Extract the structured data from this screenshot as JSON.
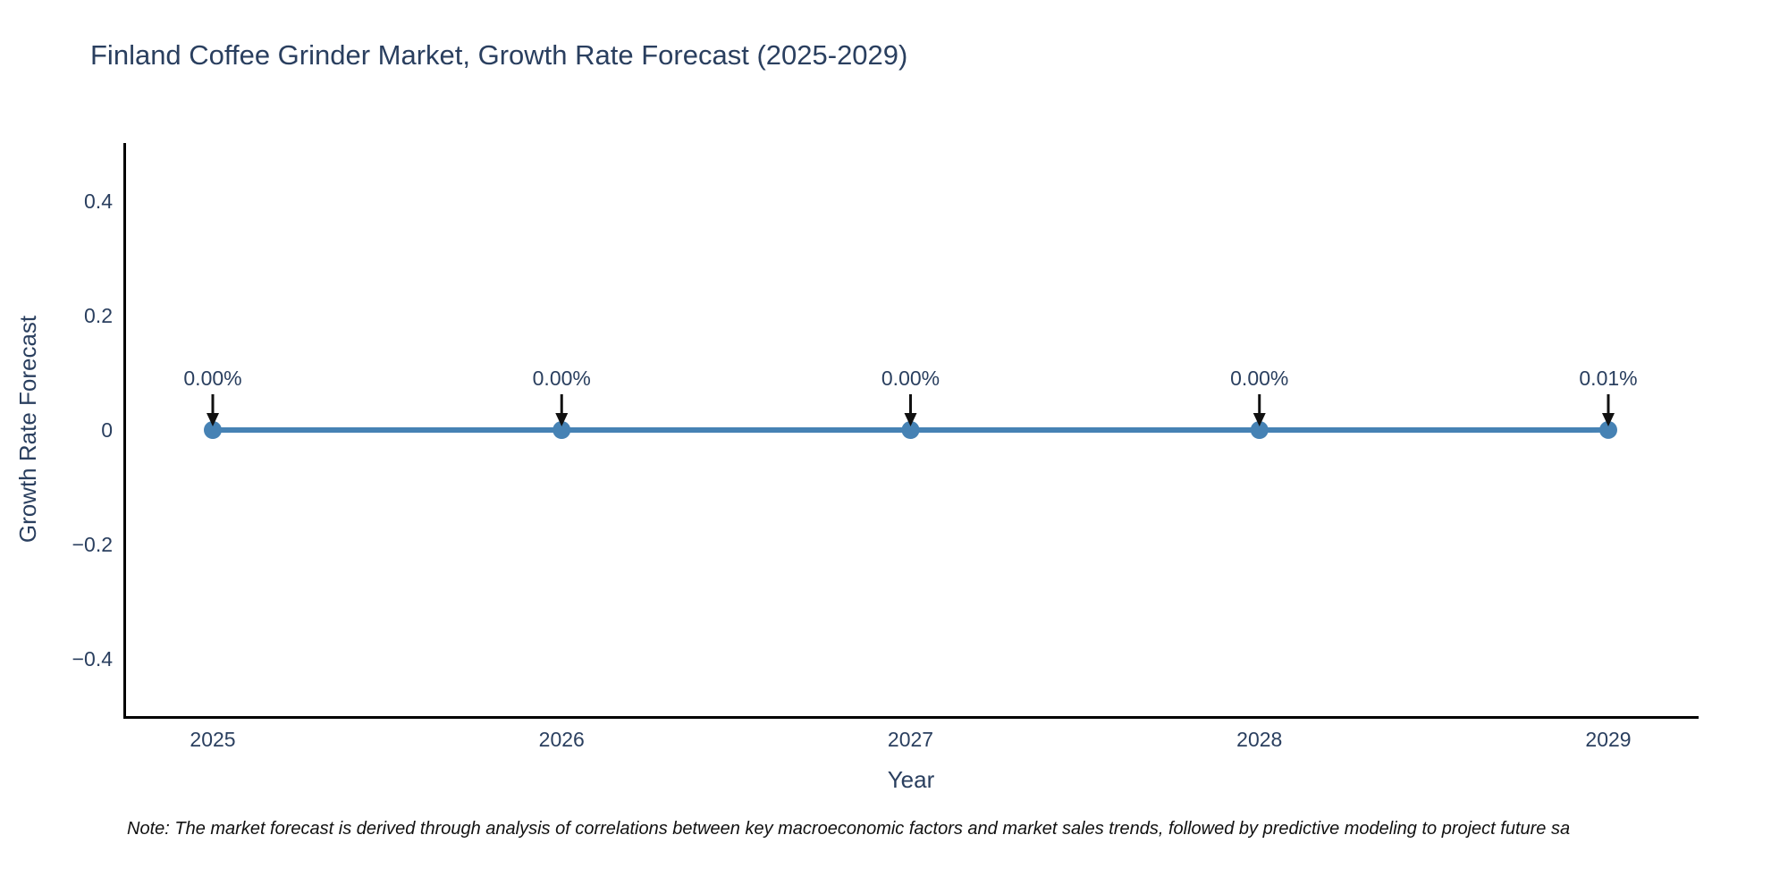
{
  "page": {
    "title": "Finland Coffee Grinder Market, Growth Rate Forecast (2025-2029)",
    "note": "Note: The market forecast is derived through analysis of correlations between key macroeconomic factors and market sales trends, followed by predictive modeling to project future sa"
  },
  "chart_data": {
    "type": "line",
    "title": "Finland Coffee Grinder Market, Growth Rate Forecast (2025-2029)",
    "x": [
      2025,
      2026,
      2027,
      2028,
      2029
    ],
    "xtick_labels": [
      "2025",
      "2026",
      "2027",
      "2028",
      "2029"
    ],
    "series": [
      {
        "name": "Growth Rate Forecast",
        "values": [
          0.0,
          0.0,
          0.0,
          0.0,
          0.0001
        ]
      }
    ],
    "point_labels": [
      "0.00%",
      "0.00%",
      "0.00%",
      "0.00%",
      "0.01%"
    ],
    "xlabel": "Year",
    "ylabel": "Growth Rate Forecast",
    "ylim": [
      -0.5,
      0.5
    ],
    "yticks": [
      0.4,
      0.2,
      0,
      -0.2,
      -0.4
    ],
    "ytick_labels": [
      "0.4",
      "0.2",
      "0",
      "−0.2",
      "−0.4"
    ],
    "grid": false,
    "legend": "none",
    "marker": "circle",
    "annotations_have_arrows": true,
    "colors": {
      "series": "#4682b4",
      "text": "#2a3f5f",
      "axis": "#000000",
      "arrow": "#111111",
      "note": "#111111",
      "background": "#ffffff"
    }
  }
}
